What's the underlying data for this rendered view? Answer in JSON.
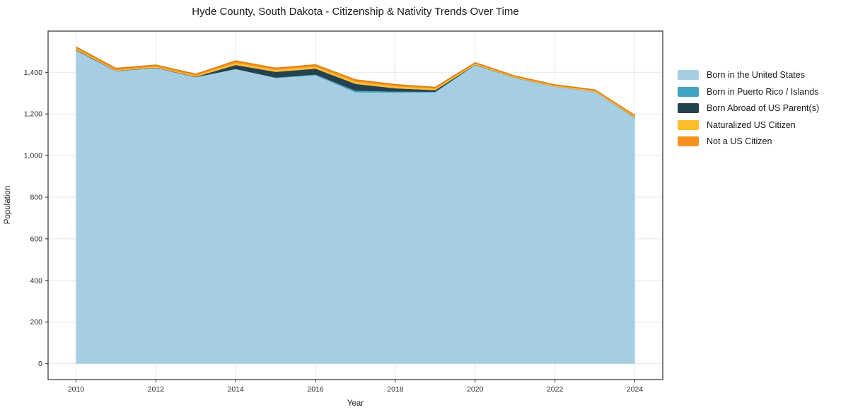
{
  "chart_data": {
    "type": "area",
    "stacked": true,
    "title": "Hyde County, South Dakota - Citizenship & Nativity Trends Over Time",
    "xlabel": "Year",
    "ylabel": "Population",
    "x": [
      2010,
      2011,
      2012,
      2013,
      2014,
      2015,
      2016,
      2017,
      2018,
      2019,
      2020,
      2021,
      2022,
      2023,
      2024
    ],
    "series": [
      {
        "name": "Born in the United States",
        "color": "#a6cee3",
        "values": [
          1505,
          1405,
          1420,
          1376,
          1415,
          1372,
          1385,
          1303,
          1302,
          1303,
          1434,
          1372,
          1330,
          1306,
          1180
        ]
      },
      {
        "name": "Born in Puerto Rico / Islands",
        "color": "#43a2c2",
        "values": [
          0,
          0,
          0,
          0,
          0,
          2,
          4,
          8,
          5,
          3,
          0,
          0,
          0,
          0,
          0
        ]
      },
      {
        "name": "Born Abroad of US Parent(s)",
        "color": "#25424f",
        "values": [
          3,
          2,
          2,
          2,
          20,
          28,
          28,
          33,
          16,
          8,
          2,
          1,
          1,
          1,
          2
        ]
      },
      {
        "name": "Naturalized US Citizen",
        "color": "#fcbe2d",
        "values": [
          5,
          4,
          5,
          5,
          10,
          9,
          10,
          10,
          9,
          7,
          5,
          4,
          4,
          4,
          5
        ]
      },
      {
        "name": "Not a US Citizen",
        "color": "#f6921f",
        "values": [
          9,
          8,
          8,
          8,
          10,
          9,
          9,
          10,
          9,
          7,
          5,
          5,
          5,
          5,
          6
        ]
      }
    ],
    "totals": [
      1522,
      1419,
      1435,
      1391,
      1455,
      1420,
      1436,
      1364,
      1341,
      1328,
      1446,
      1382,
      1340,
      1316,
      1193
    ],
    "xlim": [
      2009.3,
      2024.7
    ],
    "ylim": [
      -76,
      1598
    ],
    "xticks": {
      "values": [
        2010,
        2012,
        2014,
        2016,
        2018,
        2020,
        2022,
        2024
      ],
      "labels": [
        "2010",
        "2012",
        "2014",
        "2016",
        "2018",
        "2020",
        "2022",
        "2024"
      ]
    },
    "yticks": {
      "values": [
        0,
        200,
        400,
        600,
        800,
        1000,
        1200,
        1400
      ],
      "labels": [
        "0",
        "200",
        "400",
        "600",
        "800",
        "1,000",
        "1,200",
        "1,400"
      ]
    },
    "grid": true,
    "legend_position": "right-outside"
  },
  "colors": {
    "background": "#ffffff",
    "grid": "#e6e6e6",
    "spine": "#2b2b2b",
    "tick_label": "#2b2b2b",
    "top_contour_stroke": "#dd8113"
  }
}
